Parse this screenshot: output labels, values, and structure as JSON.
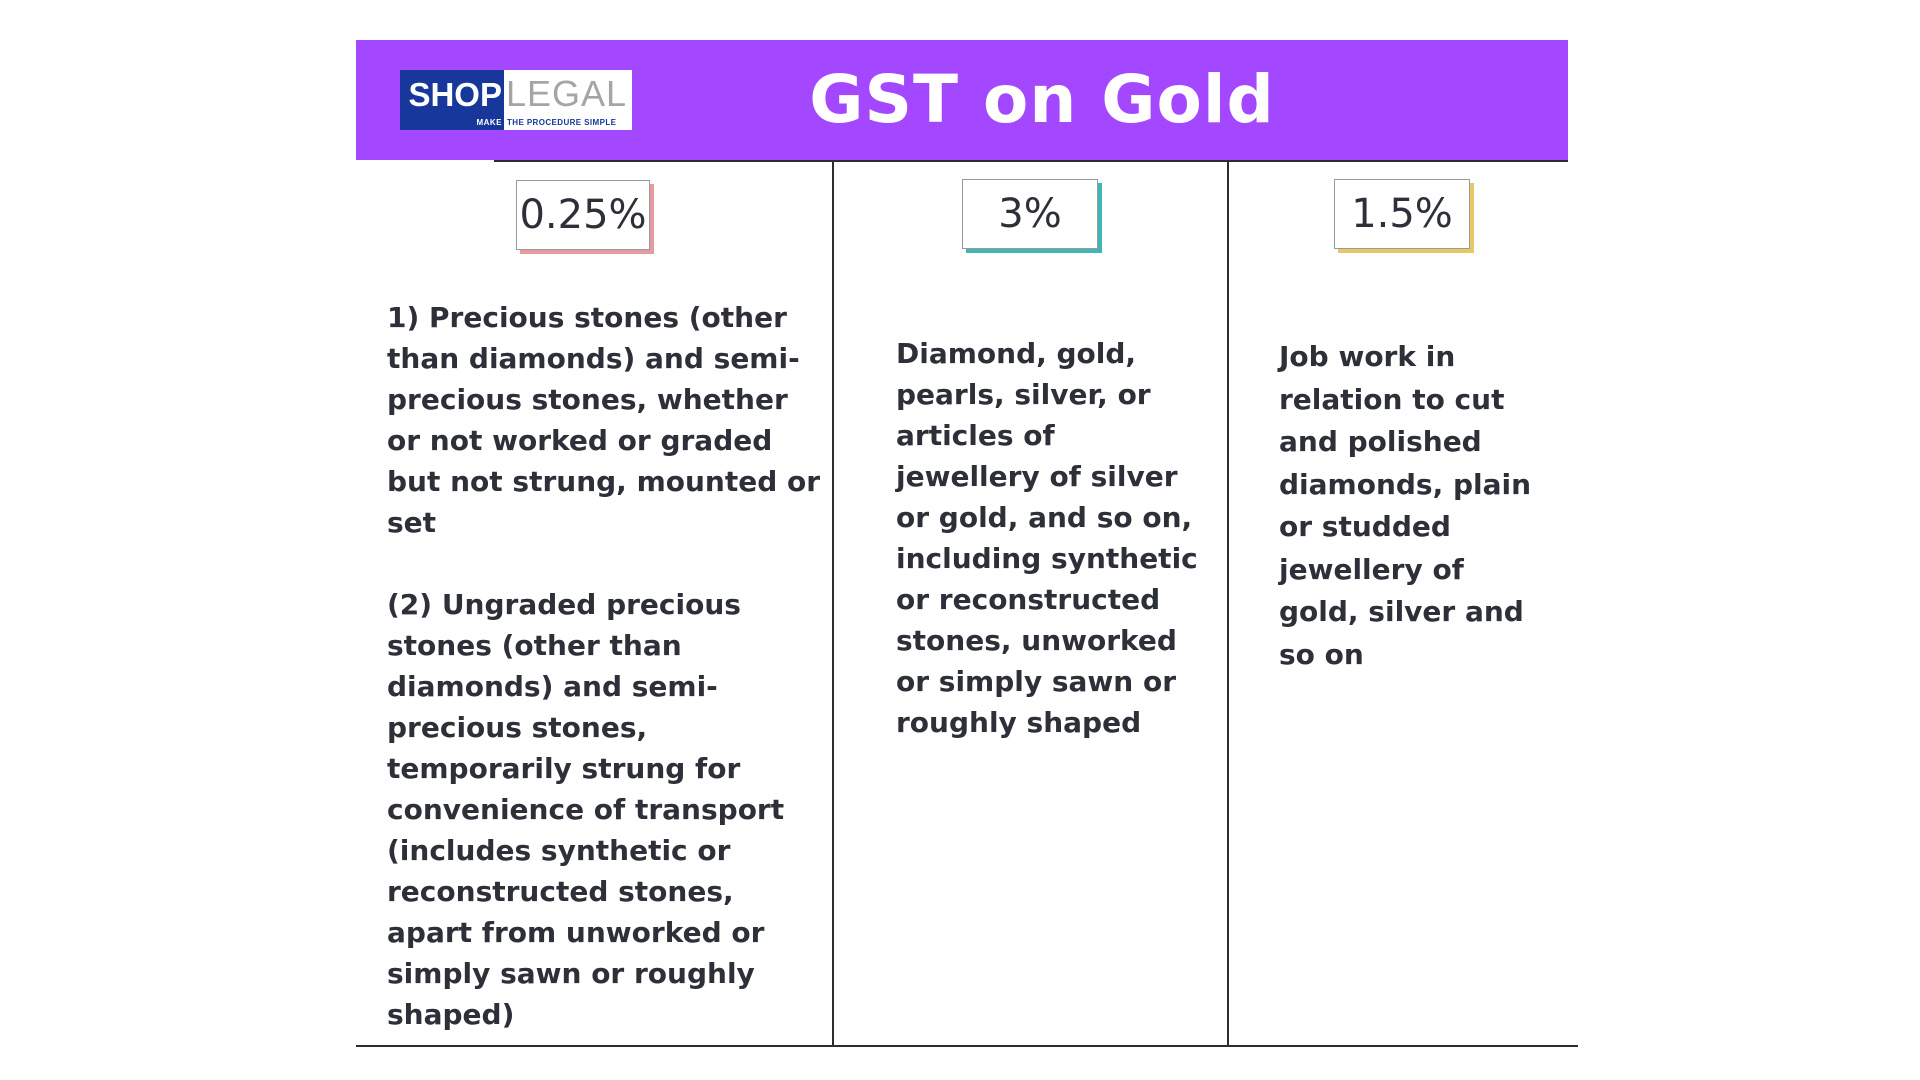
{
  "header": {
    "title": "GST on Gold",
    "background": "#a448ff"
  },
  "logo": {
    "shop": "SHOP",
    "legal": "LEGAL",
    "make": "MAKE",
    "tagline": "THE PROCEDURE SIMPLE",
    "colors": {
      "shop_bg": "#17389a",
      "legal_text": "#a5a5a5"
    }
  },
  "columns": [
    {
      "rate": "0.25%",
      "accent": "#e49aa0",
      "paragraphs": [
        "1) Precious stones (other than diamonds) and semi-precious stones, whether or not worked or graded but not strung, mounted or set",
        "(2) Ungraded precious stones (other than diamonds) and semi-precious stones, temporarily strung for convenience of transport (includes synthetic or reconstructed stones, apart from unworked or simply sawn or roughly shaped)"
      ]
    },
    {
      "rate": "3%",
      "accent": "#3eb6b6",
      "paragraphs": [
        "Diamond, gold, pearls, silver, or articles of jewellery of silver or gold, and so on, including synthetic or reconstructed stones, unworked or simply sawn or roughly shaped"
      ]
    },
    {
      "rate": "1.5%",
      "accent": "#e8c766",
      "paragraphs": [
        "Job work in relation to cut and polished diamonds, plain or studded jewellery of gold, silver and so on"
      ]
    }
  ]
}
